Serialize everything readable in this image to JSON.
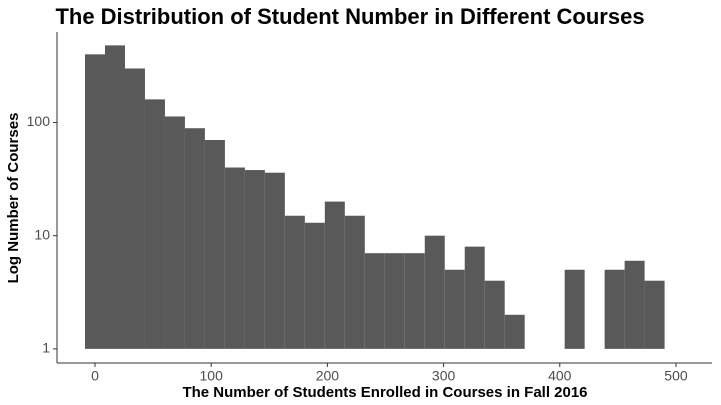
{
  "chart_data": {
    "type": "histogram",
    "title": "The Distribution of Student Number in Different Courses",
    "x_label": "The Number of Students Enrolled in Courses in Fall 2016",
    "y_label": "Log Number of Courses",
    "bins": [
      -8.6,
      8.6,
      25.8,
      43,
      60.2,
      77.4,
      94.6,
      111.8,
      129,
      146.2,
      163.4,
      180.6,
      197.8,
      215,
      232.2,
      249.4,
      266.6,
      283.8,
      301,
      318.2,
      335.4,
      352.6,
      369.8,
      387,
      404.2,
      421.4,
      438.6,
      455.8,
      473,
      490.2
    ],
    "values": [
      400,
      480,
      300,
      160,
      113,
      89,
      70,
      40,
      38,
      36,
      15,
      13,
      20,
      15,
      7,
      7,
      7,
      10,
      5,
      8,
      4,
      2,
      0,
      0,
      5,
      0,
      5,
      6,
      4
    ],
    "color": "#595959",
    "xlim": [
      -32.7,
      531
    ],
    "xticks": [
      0,
      100,
      200,
      300,
      400,
      500
    ],
    "ylim": [
      0.75,
      630
    ],
    "yticks": [
      1,
      10,
      100
    ],
    "log_y": true,
    "grid": false
  }
}
